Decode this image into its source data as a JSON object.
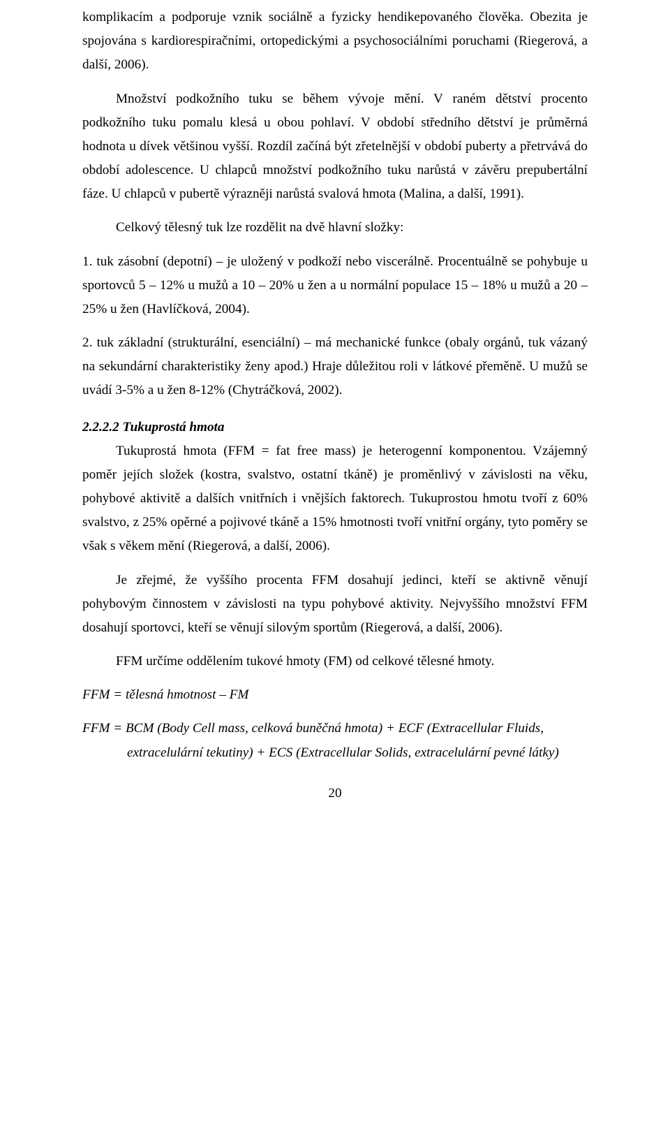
{
  "p1": "komplikacím a podporuje vznik sociálně a fyzicky hendikepovaného člověka. Obezita je spojována s kardiorespiračními, ortopedickými a psychosociálními poruchami (Riegerová, a další, 2006).",
  "p2": "Množství podkožního tuku se během vývoje mění. V raném dětství procento podkožního tuku pomalu klesá u obou pohlaví. V období středního dětství je průměrná hodnota u dívek většinou vyšší. Rozdíl začíná být zřetelnější v období puberty a přetrvává do období adolescence. U chlapců množství podkožního tuku narůstá v závěru prepubertální fáze. U chlapců v pubertě výrazněji narůstá svalová hmota (Malina, a další, 1991).",
  "p3": "Celkový tělesný tuk lze rozdělit na dvě hlavní složky:",
  "li1": "1. tuk zásobní (depotní) – je uložený v podkoží nebo viscerálně. Procentuálně se pohybuje u sportovců 5 – 12% u mužů a 10 – 20% u žen a u normální populace 15 – 18% u mužů a 20 – 25% u žen (Havlíčková, 2004).",
  "li2": "2. tuk základní (strukturální, esenciální) – má mechanické funkce (obaly orgánů, tuk vázaný na sekundární charakteristiky ženy apod.) Hraje důležitou roli v látkové přeměně. U mužů se uvádí 3-5% a u žen 8-12% (Chytráčková, 2002).",
  "h3": "2.2.2.2 Tukuprostá hmota",
  "p4": "Tukuprostá hmota (FFM = fat free mass) je heterogenní komponentou. Vzájemný poměr jejích složek (kostra, svalstvo, ostatní tkáně) je proměnlivý v závislosti na věku, pohybové aktivitě a dalších vnitřních i vnějších faktorech. Tukuprostou hmotu tvoří z 60% svalstvo, z 25% opěrné a pojivové tkáně a 15% hmotnosti tvoří vnitřní orgány, tyto poměry se však s věkem mění (Riegerová, a další, 2006).",
  "p5": "Je zřejmé, že vyššího procenta FFM dosahují jedinci, kteří se aktivně věnují pohybovým činnostem v závislosti na typu pohybové aktivity. Nejvyššího množství FFM dosahují sportovci, kteří se věnují silovým sportům (Riegerová, a další, 2006).",
  "p6": "FFM určíme oddělením tukové hmoty (FM) od celkové tělesné hmoty.",
  "eq1": "FFM = tělesná hmotnost – FM",
  "eq2": "FFM = BCM (Body Cell mass, celková buněčná hmota) + ECF (Extracellular Fluids,",
  "eq2b": "extracelulární tekutiny) + ECS (Extracellular Solids, extracelulární pevné látky)",
  "pagenum": "20"
}
